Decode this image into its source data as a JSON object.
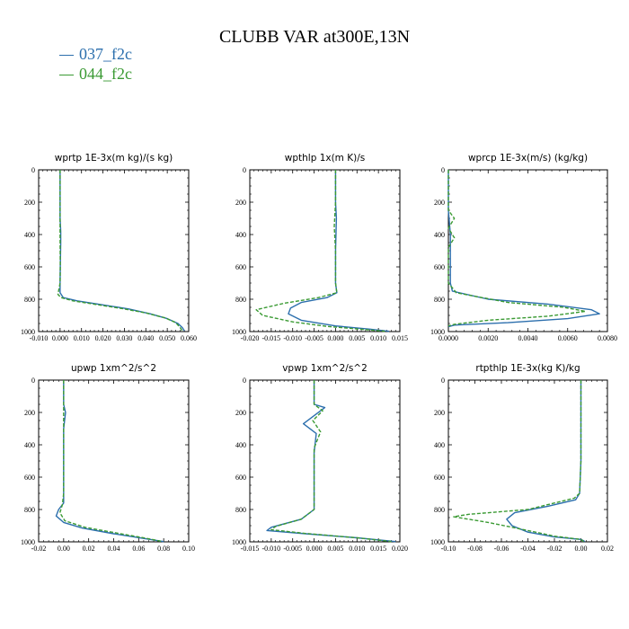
{
  "figure": {
    "title": "CLUBB VAR at300E,13N",
    "legend": [
      {
        "label": "037_f2c",
        "color": "#2c6fad",
        "style": "solid"
      },
      {
        "label": "044_f2c",
        "color": "#3a9a33",
        "style": "dashed"
      }
    ]
  },
  "chart_data": [
    {
      "type": "line",
      "title": "wprtp  1E-3x(m kg)/(s kg)",
      "xlim": [
        -0.01,
        0.06
      ],
      "ylim": [
        1000,
        0
      ],
      "xticks": [
        "-0.010",
        "0.000",
        "0.010",
        "0.020",
        "0.030",
        "0.040",
        "0.050",
        "0.060"
      ],
      "xtick_values": [
        -0.01,
        0.0,
        0.01,
        0.02,
        0.03,
        0.04,
        0.05,
        0.06
      ],
      "yticks": [
        "0",
        "200",
        "400",
        "600",
        "800",
        "1000"
      ],
      "series": [
        {
          "name": "037_f2c",
          "points": [
            [
              0.0,
              0
            ],
            [
              0.0,
              300
            ],
            [
              0.0003,
              380
            ],
            [
              0.0003,
              450
            ],
            [
              0.0001,
              600
            ],
            [
              0.0,
              700
            ],
            [
              0.0,
              760
            ],
            [
              0.0015,
              790
            ],
            [
              0.008,
              810
            ],
            [
              0.02,
              835
            ],
            [
              0.032,
              860
            ],
            [
              0.042,
              890
            ],
            [
              0.05,
              920
            ],
            [
              0.055,
              950
            ],
            [
              0.057,
              975
            ],
            [
              0.058,
              995
            ]
          ]
        },
        {
          "name": "044_f2c",
          "points": [
            [
              0.0,
              0
            ],
            [
              0.0,
              300
            ],
            [
              0.0,
              400
            ],
            [
              0.0001,
              600
            ],
            [
              0.0,
              700
            ],
            [
              -0.001,
              770
            ],
            [
              0.0005,
              790
            ],
            [
              0.006,
              810
            ],
            [
              0.018,
              835
            ],
            [
              0.03,
              860
            ],
            [
              0.04,
              885
            ],
            [
              0.049,
              915
            ],
            [
              0.054,
              945
            ],
            [
              0.056,
              975
            ],
            [
              0.057,
              995
            ]
          ]
        }
      ]
    },
    {
      "type": "line",
      "title": "wpthlp  1x(m K)/s",
      "xlim": [
        -0.02,
        0.015
      ],
      "ylim": [
        1000,
        0
      ],
      "xticks": [
        "-0.020",
        "-0.015",
        "-0.010",
        "-0.005",
        "0.000",
        "0.005",
        "0.010",
        "0.015"
      ],
      "xtick_values": [
        -0.02,
        -0.015,
        -0.01,
        -0.005,
        0.0,
        0.005,
        0.01,
        0.015
      ],
      "yticks": [
        "0",
        "200",
        "400",
        "600",
        "800",
        "1000"
      ],
      "series": [
        {
          "name": "037_f2c",
          "points": [
            [
              0.0,
              0
            ],
            [
              0.0,
              200
            ],
            [
              0.0002,
              300
            ],
            [
              0.0,
              500
            ],
            [
              0.0,
              700
            ],
            [
              0.0003,
              760
            ],
            [
              -0.002,
              790
            ],
            [
              -0.008,
              820
            ],
            [
              -0.0105,
              855
            ],
            [
              -0.011,
              890
            ],
            [
              -0.008,
              930
            ],
            [
              0.0,
              965
            ],
            [
              0.008,
              985
            ],
            [
              0.0125,
              998
            ]
          ]
        },
        {
          "name": "044_f2c",
          "points": [
            [
              0.0,
              0
            ],
            [
              0.0,
              200
            ],
            [
              -0.0003,
              350
            ],
            [
              0.0,
              500
            ],
            [
              0.0,
              700
            ],
            [
              0.0003,
              760
            ],
            [
              -0.004,
              790
            ],
            [
              -0.012,
              825
            ],
            [
              -0.0185,
              865
            ],
            [
              -0.017,
              900
            ],
            [
              -0.01,
              940
            ],
            [
              -0.002,
              968
            ],
            [
              0.007,
              988
            ],
            [
              0.0115,
              998
            ]
          ]
        }
      ]
    },
    {
      "type": "line",
      "title": "wprcp  1E-3x(m/s) (kg/kg)",
      "xlim": [
        0.0,
        0.008
      ],
      "ylim": [
        1000,
        0
      ],
      "xticks": [
        "0.0000",
        "0.0020",
        "0.0040",
        "0.0060",
        "0.0080"
      ],
      "xtick_values": [
        0.0,
        0.002,
        0.004,
        0.006,
        0.008
      ],
      "yticks": [
        "0",
        "200",
        "400",
        "600",
        "800",
        "1000"
      ],
      "series": [
        {
          "name": "037_f2c",
          "points": [
            [
              0.0,
              0
            ],
            [
              0.0,
              250
            ],
            [
              0.0001,
              400
            ],
            [
              0.0001,
              700
            ],
            [
              0.0002,
              750
            ],
            [
              0.002,
              800
            ],
            [
              0.005,
              830
            ],
            [
              0.0072,
              865
            ],
            [
              0.0076,
              890
            ],
            [
              0.006,
              920
            ],
            [
              0.003,
              945
            ],
            [
              0.0003,
              960
            ],
            [
              0.0,
              970
            ]
          ]
        },
        {
          "name": "044_f2c",
          "points": [
            [
              0.0,
              0
            ],
            [
              0.0,
              250
            ],
            [
              0.0003,
              300
            ],
            [
              0.0,
              360
            ],
            [
              0.0003,
              420
            ],
            [
              0.0,
              480
            ],
            [
              0.0,
              700
            ],
            [
              0.0004,
              760
            ],
            [
              0.003,
              820
            ],
            [
              0.0058,
              850
            ],
            [
              0.0069,
              875
            ],
            [
              0.005,
              905
            ],
            [
              0.002,
              930
            ],
            [
              0.0003,
              955
            ],
            [
              0.0,
              965
            ]
          ]
        }
      ]
    },
    {
      "type": "line",
      "title": "upwp  1xm^2/s^2",
      "xlim": [
        -0.02,
        0.1
      ],
      "ylim": [
        1000,
        0
      ],
      "xticks": [
        "-0.02",
        "0.00",
        "0.02",
        "0.04",
        "0.06",
        "0.08",
        "0.10"
      ],
      "xtick_values": [
        -0.02,
        0.0,
        0.02,
        0.04,
        0.06,
        0.08,
        0.1
      ],
      "yticks": [
        "0",
        "200",
        "400",
        "600",
        "800",
        "1000"
      ],
      "series": [
        {
          "name": "037_f2c",
          "points": [
            [
              0.0,
              0
            ],
            [
              0.0,
              150
            ],
            [
              0.0015,
              200
            ],
            [
              0.0,
              300
            ],
            [
              0.0,
              700
            ],
            [
              0.0,
              760
            ],
            [
              -0.004,
              800
            ],
            [
              -0.006,
              840
            ],
            [
              0.0,
              880
            ],
            [
              0.015,
              915
            ],
            [
              0.04,
              950
            ],
            [
              0.065,
              980
            ],
            [
              0.08,
              998
            ]
          ]
        },
        {
          "name": "044_f2c",
          "points": [
            [
              0.0,
              0
            ],
            [
              0.0,
              150
            ],
            [
              0.0,
              300
            ],
            [
              0.0,
              700
            ],
            [
              -0.001,
              770
            ],
            [
              -0.003,
              820
            ],
            [
              0.001,
              870
            ],
            [
              0.017,
              910
            ],
            [
              0.042,
              945
            ],
            [
              0.066,
              978
            ],
            [
              0.079,
              998
            ]
          ]
        }
      ]
    },
    {
      "type": "line",
      "title": "vpwp  1xm^2/s^2",
      "xlim": [
        -0.015,
        0.02
      ],
      "ylim": [
        1000,
        0
      ],
      "xticks": [
        "-0.015",
        "-0.010",
        "-0.005",
        "0.000",
        "0.005",
        "0.010",
        "0.015",
        "0.020"
      ],
      "xtick_values": [
        -0.015,
        -0.01,
        -0.005,
        0.0,
        0.005,
        0.01,
        0.015,
        0.02
      ],
      "yticks": [
        "0",
        "200",
        "400",
        "600",
        "800",
        "1000"
      ],
      "series": [
        {
          "name": "037_f2c",
          "points": [
            [
              0.0,
              0
            ],
            [
              0.0,
              150
            ],
            [
              0.0025,
              170
            ],
            [
              -0.0025,
              270
            ],
            [
              0.0005,
              330
            ],
            [
              0.0,
              450
            ],
            [
              0.0,
              700
            ],
            [
              0.0,
              800
            ],
            [
              -0.003,
              860
            ],
            [
              -0.01,
              910
            ],
            [
              -0.011,
              930
            ],
            [
              -0.002,
              950
            ],
            [
              0.01,
              975
            ],
            [
              0.019,
              998
            ]
          ]
        },
        {
          "name": "044_f2c",
          "points": [
            [
              0.0,
              0
            ],
            [
              0.0,
              150
            ],
            [
              0.002,
              190
            ],
            [
              -0.0003,
              250
            ],
            [
              0.0015,
              320
            ],
            [
              0.0,
              420
            ],
            [
              0.0,
              700
            ],
            [
              0.0,
              800
            ],
            [
              -0.003,
              860
            ],
            [
              -0.009,
              905
            ],
            [
              -0.01,
              925
            ],
            [
              -0.002,
              948
            ],
            [
              0.01,
              975
            ],
            [
              0.018,
              998
            ]
          ]
        }
      ]
    },
    {
      "type": "line",
      "title": "rtpthlp  1E-3x(kg K)/kg",
      "xlim": [
        -0.1,
        0.02
      ],
      "ylim": [
        1000,
        0
      ],
      "xticks": [
        "-0.10",
        "-0.08",
        "-0.06",
        "-0.04",
        "-0.02",
        "0.00",
        "0.02"
      ],
      "xtick_values": [
        -0.1,
        -0.08,
        -0.06,
        -0.04,
        -0.02,
        0.0,
        0.02
      ],
      "yticks": [
        "0",
        "200",
        "400",
        "600",
        "800",
        "1000"
      ],
      "series": [
        {
          "name": "037_f2c",
          "points": [
            [
              0.0,
              0
            ],
            [
              0.0,
              500
            ],
            [
              -0.001,
              700
            ],
            [
              -0.004,
              740
            ],
            [
              -0.025,
              780
            ],
            [
              -0.05,
              820
            ],
            [
              -0.056,
              860
            ],
            [
              -0.052,
              900
            ],
            [
              -0.04,
              940
            ],
            [
              -0.02,
              970
            ],
            [
              0.0,
              985
            ],
            [
              0.003,
              998
            ]
          ]
        },
        {
          "name": "044_f2c",
          "points": [
            [
              0.0,
              0
            ],
            [
              0.0,
              500
            ],
            [
              -0.001,
              700
            ],
            [
              -0.005,
              730
            ],
            [
              -0.04,
              800
            ],
            [
              -0.085,
              830
            ],
            [
              -0.096,
              845
            ],
            [
              -0.07,
              880
            ],
            [
              -0.04,
              930
            ],
            [
              -0.02,
              965
            ],
            [
              0.0,
              985
            ],
            [
              0.002,
              998
            ]
          ]
        }
      ]
    }
  ]
}
